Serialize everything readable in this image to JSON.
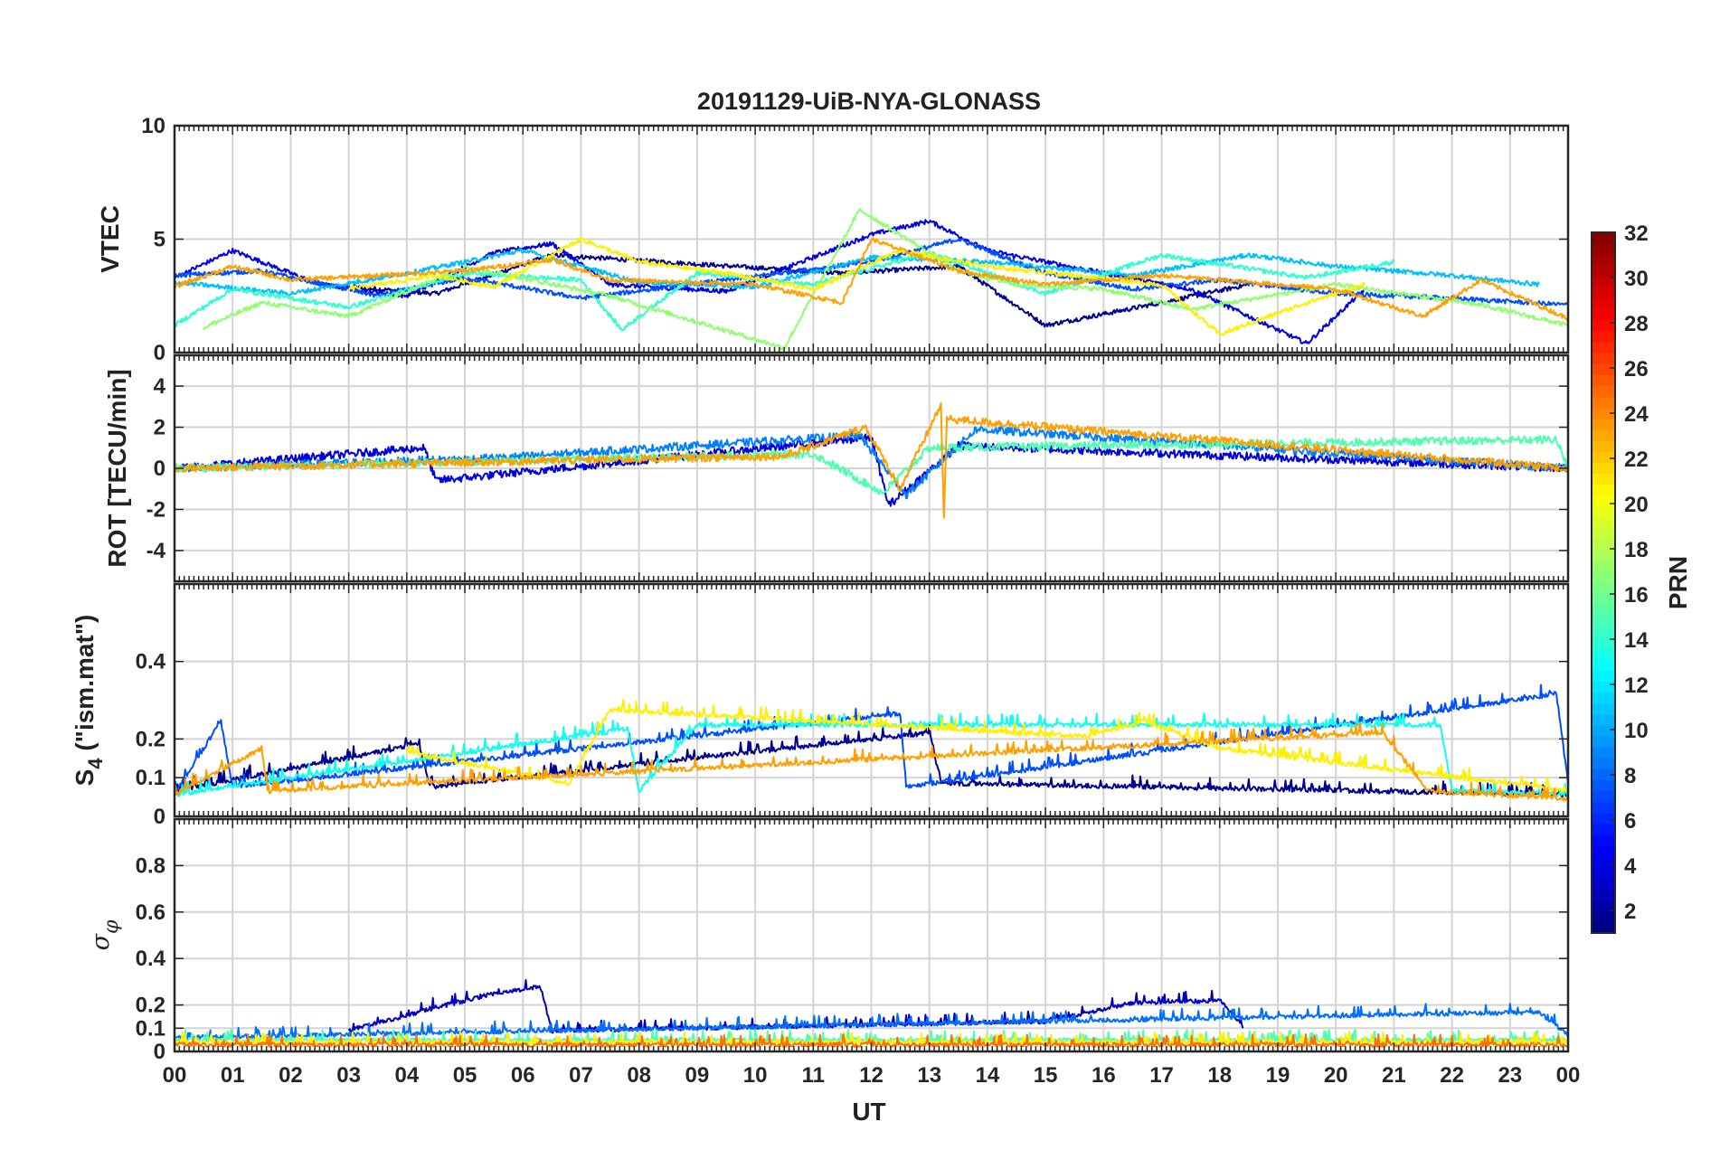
{
  "chart_data": {
    "title": "20191129-UiB-NYA-GLONASS",
    "type": "line",
    "xlabel": "UT",
    "x_tick_labels": [
      "00",
      "01",
      "02",
      "03",
      "04",
      "05",
      "06",
      "07",
      "08",
      "09",
      "10",
      "11",
      "12",
      "13",
      "14",
      "15",
      "16",
      "17",
      "18",
      "19",
      "20",
      "21",
      "22",
      "23",
      "00"
    ],
    "x_range_hours": [
      0,
      24
    ],
    "grid": true,
    "colorbar": {
      "label": "PRN",
      "colormap": "jet",
      "range": [
        1,
        32
      ],
      "tick_values": [
        2,
        4,
        6,
        8,
        10,
        12,
        14,
        16,
        18,
        20,
        22,
        24,
        26,
        28,
        30,
        32
      ],
      "tick_labels": [
        "2",
        "4",
        "6",
        "8",
        "10",
        "12",
        "14",
        "16",
        "18",
        "20",
        "22",
        "24",
        "26",
        "28",
        "30",
        "32"
      ],
      "placement": "right"
    },
    "panels": [
      {
        "id": "vtec",
        "ylabel": "VTEC",
        "ylim": [
          0,
          10
        ],
        "y_ticks": [
          0,
          5,
          10
        ],
        "y_tick_labels": [
          "0",
          "5",
          "10"
        ],
        "grid_y": [
          5
        ],
        "series": [
          {
            "prn": 1,
            "color": "#00008F",
            "x": [
              2.5,
              4.5,
              6.5,
              11.5,
              13.5,
              15.0,
              17.0,
              18.5
            ],
            "y": [
              3.0,
              2.6,
              4.3,
              3.5,
              3.8,
              1.2,
              2.2,
              3.0
            ]
          },
          {
            "prn": 3,
            "color": "#0000DF",
            "x": [
              0.0,
              1.0,
              2.5,
              4.0,
              5.5,
              6.5,
              7.5,
              9.5,
              12.0,
              13.0,
              14.0,
              16.0,
              17.5,
              19.5,
              20.5
            ],
            "y": [
              3.3,
              4.5,
              3.0,
              2.5,
              4.4,
              4.8,
              3.0,
              2.7,
              5.2,
              5.8,
              4.5,
              3.5,
              2.8,
              0.4,
              2.8
            ]
          },
          {
            "prn": 7,
            "color": "#004FFF",
            "x": [
              0.0,
              1.5,
              3.5,
              5.0,
              7.0,
              9.5,
              12.0,
              13.5,
              15.0,
              16.5,
              18.0,
              20.0,
              22.0,
              24.0
            ],
            "y": [
              3.4,
              3.6,
              2.5,
              3.3,
              2.4,
              3.2,
              4.0,
              5.0,
              3.5,
              2.8,
              3.2,
              2.6,
              2.4,
              2.1
            ]
          },
          {
            "prn": 12,
            "color": "#00BFFF",
            "x": [
              0.0,
              2.0,
              4.0,
              6.0,
              8.0,
              10.0,
              12.0,
              14.0,
              16.5,
              18.5,
              20.0,
              22.0,
              23.5
            ],
            "y": [
              3.1,
              2.6,
              3.5,
              4.5,
              3.1,
              2.9,
              4.2,
              4.0,
              3.4,
              4.3,
              3.8,
              3.4,
              3.0
            ]
          },
          {
            "prn": 15,
            "color": "#2FFFCF",
            "x": [
              0.0,
              1.0,
              3.0,
              5.0,
              7.0,
              7.7,
              9.0,
              11.0,
              13.0,
              15.0,
              17.0,
              19.5,
              21.0
            ],
            "y": [
              1.2,
              2.8,
              2.0,
              3.5,
              3.2,
              1.0,
              3.5,
              3.0,
              4.4,
              2.6,
              4.3,
              3.3,
              4.0
            ]
          },
          {
            "prn": 18,
            "color": "#8FFF6F",
            "x": [
              0.5,
              1.5,
              3.0,
              5.0,
              7.5,
              10.5,
              11.8,
              13.5,
              14.5,
              16.0,
              17.5,
              20.0,
              22.5,
              24.0
            ],
            "y": [
              1.1,
              2.2,
              1.6,
              3.8,
              2.5,
              0.2,
              6.3,
              3.6,
              3.0,
              2.8,
              1.9,
              3.0,
              2.1,
              1.2
            ]
          },
          {
            "prn": 20,
            "color": "#FFEF00",
            "x": [
              3.0,
              4.5,
              5.5,
              7.0,
              8.0,
              9.5,
              11.0,
              12.5,
              14.0,
              17.0,
              18.0,
              19.5,
              20.5
            ],
            "y": [
              2.8,
              3.4,
              2.9,
              5.0,
              4.0,
              3.5,
              2.8,
              4.5,
              3.8,
              3.0,
              0.8,
              2.2,
              3.0
            ]
          },
          {
            "prn": 22,
            "color": "#FF9F00",
            "x": [
              0.0,
              1.0,
              2.0,
              5.0,
              6.5,
              7.5,
              10.0,
              11.5,
              12.0,
              13.5,
              15.0,
              17.0,
              20.0,
              21.5,
              22.5,
              24.0
            ],
            "y": [
              2.9,
              3.8,
              3.2,
              3.6,
              4.1,
              3.2,
              3.0,
              2.2,
              5.0,
              3.6,
              3.0,
              3.4,
              2.8,
              1.6,
              3.2,
              1.5
            ]
          }
        ]
      },
      {
        "id": "rot",
        "ylabel": "ROT [TECU/min]",
        "ylim": [
          -5.5,
          5.5
        ],
        "y_ticks": [
          -4,
          -2,
          0,
          2,
          4
        ],
        "y_tick_labels": [
          "-4",
          "-2",
          "0",
          "2",
          "4"
        ],
        "grid_y": [
          -4,
          -2,
          0,
          2,
          4
        ],
        "series": [
          {
            "prn": 3,
            "color": "#0000DF",
            "x": [
              0.0,
              4.3,
              4.5,
              12.0,
              12.3,
              13.5,
              24.0
            ],
            "y": [
              0.0,
              1.0,
              -0.6,
              1.5,
              -1.8,
              1.1,
              0.0
            ]
          },
          {
            "prn": 9,
            "color": "#0080FF",
            "x": [
              0.0,
              5.5,
              11.8,
              12.6,
              13.8,
              24.0
            ],
            "y": [
              0.0,
              0.5,
              1.6,
              -1.3,
              1.9,
              0.0
            ]
          },
          {
            "prn": 16,
            "color": "#4FFFAF",
            "x": [
              0.0,
              11.0,
              12.2,
              13.0,
              23.8,
              24.0
            ],
            "y": [
              0.0,
              0.7,
              -1.2,
              1.0,
              1.4,
              0.0
            ]
          },
          {
            "prn": 22,
            "color": "#FF9F00",
            "x": [
              0.0,
              10.5,
              11.9,
              12.5,
              13.2,
              13.25,
              13.3,
              24.0
            ],
            "y": [
              0.0,
              0.6,
              2.0,
              -1.0,
              3.1,
              -2.6,
              2.4,
              0.0
            ]
          }
        ]
      },
      {
        "id": "s4",
        "ylabel": "S4 (\"ism.mat\")",
        "ylabel_main": "S",
        "ylabel_sub": "4",
        "ylabel_rest": " (\"ism.mat\")",
        "ylim": [
          0,
          0.6
        ],
        "y_ticks": [
          0,
          0.1,
          0.2,
          0.4
        ],
        "y_tick_labels": [
          "0",
          "0.1",
          "0.2",
          "0.4"
        ],
        "grid_y": [
          0.1,
          0.2,
          0.4
        ],
        "series": [
          {
            "prn": 1,
            "color": "#00008F",
            "x": [
              0.0,
              4.2,
              4.4,
              13.0,
              13.2,
              24.0
            ],
            "y": [
              0.06,
              0.18,
              0.07,
              0.21,
              0.08,
              0.05
            ]
          },
          {
            "prn": 7,
            "color": "#004FFF",
            "x": [
              0.0,
              0.8,
              1.0,
              12.5,
              12.6,
              23.8,
              24.0
            ],
            "y": [
              0.05,
              0.24,
              0.07,
              0.26,
              0.07,
              0.31,
              0.08
            ]
          },
          {
            "prn": 14,
            "color": "#0FFFEF",
            "x": [
              0.0,
              7.8,
              8.0,
              9.0,
              21.8,
              22.0,
              24.0
            ],
            "y": [
              0.05,
              0.22,
              0.06,
              0.23,
              0.23,
              0.06,
              0.05
            ]
          },
          {
            "prn": 20,
            "color": "#FFEF00",
            "x": [
              4.0,
              6.8,
              7.5,
              15.7,
              16.7,
              18.0,
              24.0
            ],
            "y": [
              0.16,
              0.08,
              0.27,
              0.2,
              0.24,
              0.17,
              0.06
            ]
          },
          {
            "prn": 22,
            "color": "#FF9F00",
            "x": [
              0.0,
              1.5,
              1.6,
              20.8,
              21.6,
              24.0
            ],
            "y": [
              0.05,
              0.17,
              0.06,
              0.21,
              0.06,
              0.04
            ]
          }
        ]
      },
      {
        "id": "sigma_phi",
        "ylabel": "σφ",
        "ylabel_main": "σ",
        "ylabel_sub": "φ",
        "ylim": [
          0,
          1.0
        ],
        "y_ticks": [
          0,
          0.1,
          0.2,
          0.4,
          0.6,
          0.8
        ],
        "y_tick_labels": [
          "0",
          "0.1",
          "0.2",
          "0.4",
          "0.6",
          "0.8"
        ],
        "grid_y": [
          0.1,
          0.2,
          0.4,
          0.6,
          0.8
        ],
        "series": [
          {
            "prn": 2,
            "color": "#0000BF",
            "x": [
              3.0,
              4.5,
              5.5,
              6.3,
              6.5,
              15.0,
              16.5,
              18.0,
              18.4
            ],
            "y": [
              0.08,
              0.18,
              0.24,
              0.27,
              0.08,
              0.12,
              0.2,
              0.21,
              0.1
            ]
          },
          {
            "prn": 8,
            "color": "#006FFF",
            "x": [
              0.0,
              23.5,
              24.0
            ],
            "y": [
              0.05,
              0.16,
              0.06
            ]
          },
          {
            "prn": 16,
            "color": "#4FFFAF",
            "x": [
              0.0,
              24.0
            ],
            "y": [
              0.04,
              0.04
            ]
          },
          {
            "prn": 20,
            "color": "#FFEF00",
            "x": [
              0.0,
              24.0
            ],
            "y": [
              0.03,
              0.03
            ]
          },
          {
            "prn": 24,
            "color": "#FF6F00",
            "x": [
              0.0,
              24.0
            ],
            "y": [
              0.02,
              0.02
            ]
          }
        ]
      }
    ]
  }
}
